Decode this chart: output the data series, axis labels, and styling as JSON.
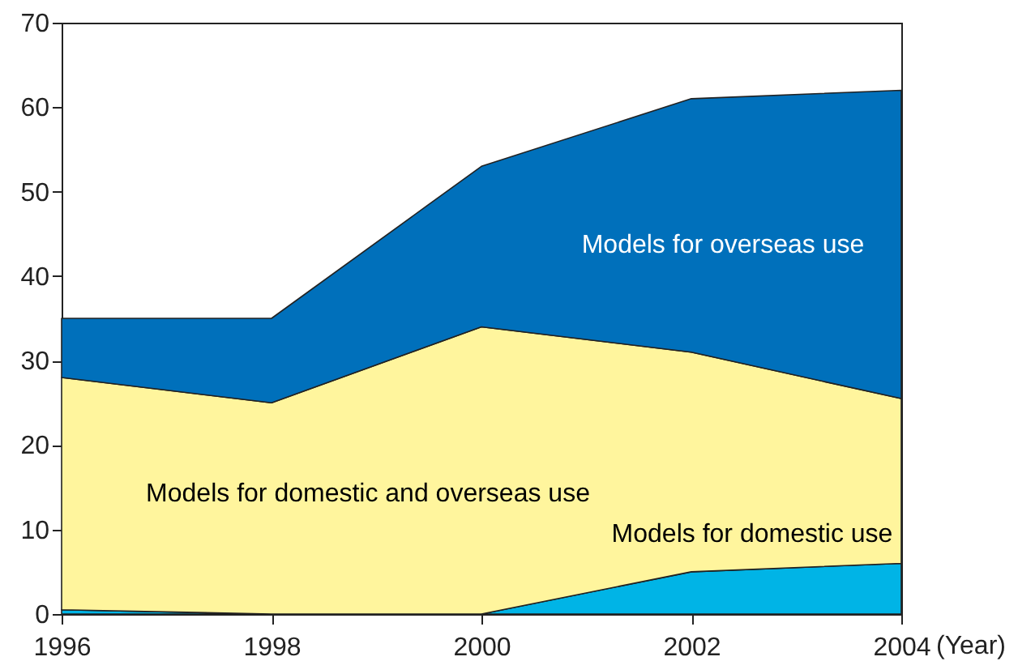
{
  "chart_data": {
    "type": "area",
    "stacked": true,
    "xlabel": "(Year)",
    "x": [
      1996,
      1998,
      2000,
      2002,
      2004
    ],
    "series": [
      {
        "name": "Models for domestic use",
        "color": "#00b4e6",
        "values": [
          0.5,
          0,
          0,
          5,
          6
        ]
      },
      {
        "name": "Models for domestic and overseas use",
        "color": "#fff59d",
        "values": [
          27.5,
          25,
          34,
          26,
          19.5
        ]
      },
      {
        "name": "Models for overseas use",
        "color": "#0070bb",
        "values": [
          7,
          10,
          19,
          30,
          36.5
        ]
      }
    ],
    "xlim": [
      1996,
      2004
    ],
    "xticks": [
      1996,
      1998,
      2000,
      2002,
      2004
    ],
    "ylim": [
      0,
      70
    ],
    "yticks": [
      0,
      10,
      20,
      30,
      40,
      50,
      60,
      70
    ],
    "grid": false
  }
}
